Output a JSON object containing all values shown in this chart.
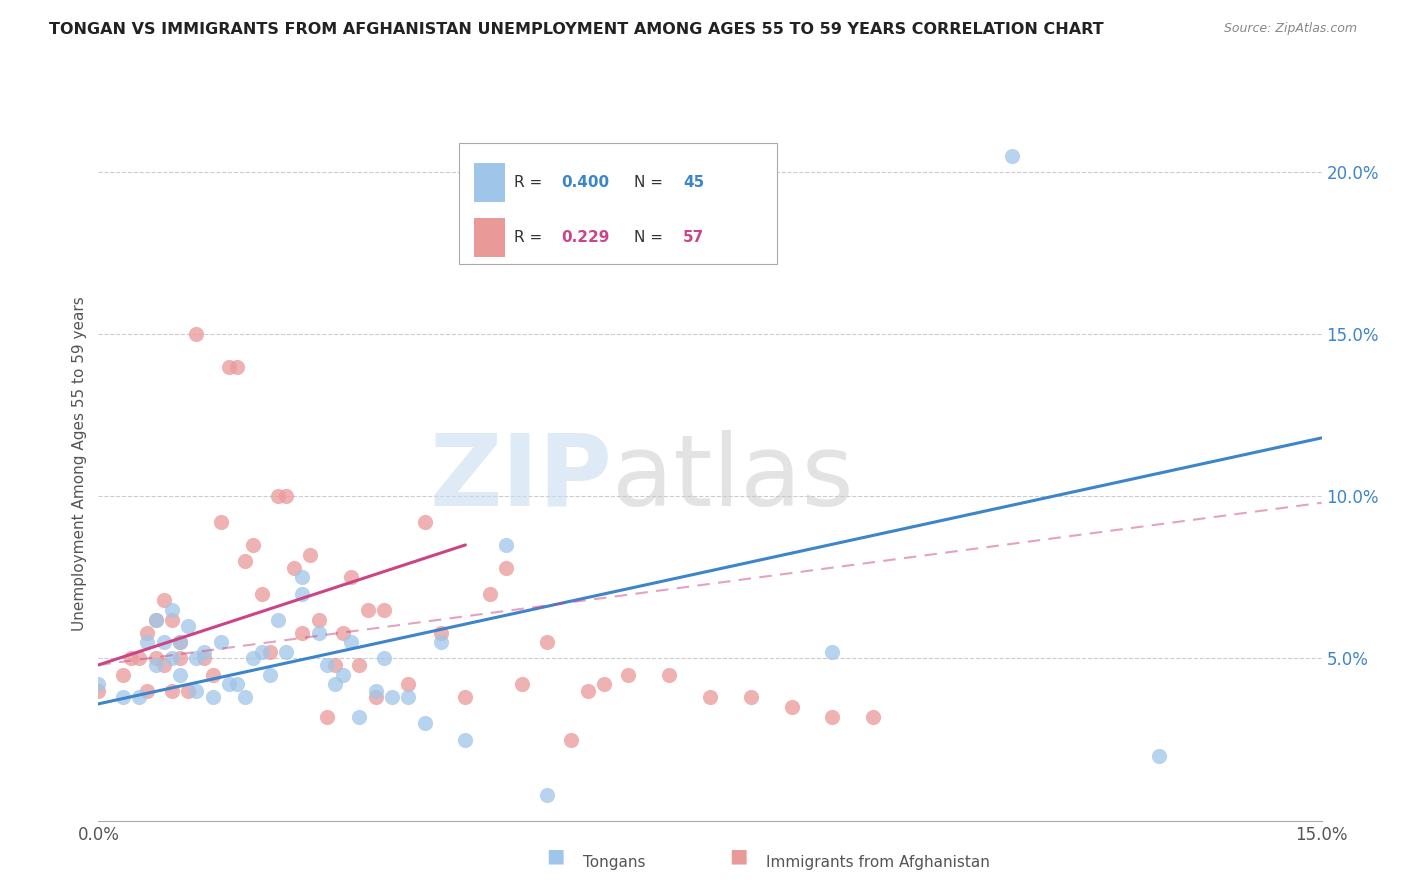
{
  "title": "TONGAN VS IMMIGRANTS FROM AFGHANISTAN UNEMPLOYMENT AMONG AGES 55 TO 59 YEARS CORRELATION CHART",
  "source": "Source: ZipAtlas.com",
  "ylabel": "Unemployment Among Ages 55 to 59 years",
  "xlim": [
    0.0,
    0.15
  ],
  "ylim": [
    0.0,
    0.22
  ],
  "xticks": [
    0.0,
    0.03,
    0.06,
    0.09,
    0.12,
    0.15
  ],
  "yticks_right": [
    0.05,
    0.1,
    0.15,
    0.2
  ],
  "ytick_right_labels": [
    "5.0%",
    "10.0%",
    "15.0%",
    "20.0%"
  ],
  "tongans_x": [
    0.0,
    0.003,
    0.005,
    0.006,
    0.007,
    0.007,
    0.008,
    0.009,
    0.009,
    0.01,
    0.01,
    0.011,
    0.012,
    0.012,
    0.013,
    0.014,
    0.015,
    0.016,
    0.017,
    0.018,
    0.019,
    0.02,
    0.021,
    0.022,
    0.023,
    0.025,
    0.025,
    0.027,
    0.028,
    0.029,
    0.03,
    0.031,
    0.032,
    0.034,
    0.035,
    0.036,
    0.038,
    0.04,
    0.042,
    0.045,
    0.05,
    0.055,
    0.09,
    0.112,
    0.13
  ],
  "tongans_y": [
    0.042,
    0.038,
    0.038,
    0.055,
    0.048,
    0.062,
    0.055,
    0.05,
    0.065,
    0.045,
    0.055,
    0.06,
    0.04,
    0.05,
    0.052,
    0.038,
    0.055,
    0.042,
    0.042,
    0.038,
    0.05,
    0.052,
    0.045,
    0.062,
    0.052,
    0.07,
    0.075,
    0.058,
    0.048,
    0.042,
    0.045,
    0.055,
    0.032,
    0.04,
    0.05,
    0.038,
    0.038,
    0.03,
    0.055,
    0.025,
    0.085,
    0.008,
    0.052,
    0.205,
    0.02
  ],
  "afghanistan_x": [
    0.0,
    0.003,
    0.004,
    0.005,
    0.006,
    0.006,
    0.007,
    0.007,
    0.008,
    0.008,
    0.009,
    0.009,
    0.01,
    0.01,
    0.011,
    0.012,
    0.013,
    0.014,
    0.015,
    0.016,
    0.017,
    0.018,
    0.019,
    0.02,
    0.021,
    0.022,
    0.023,
    0.024,
    0.025,
    0.026,
    0.027,
    0.028,
    0.029,
    0.03,
    0.031,
    0.032,
    0.033,
    0.034,
    0.035,
    0.038,
    0.04,
    0.042,
    0.045,
    0.048,
    0.05,
    0.052,
    0.055,
    0.058,
    0.06,
    0.062,
    0.065,
    0.07,
    0.075,
    0.08,
    0.085,
    0.09,
    0.095
  ],
  "afghanistan_y": [
    0.04,
    0.045,
    0.05,
    0.05,
    0.04,
    0.058,
    0.05,
    0.062,
    0.048,
    0.068,
    0.04,
    0.062,
    0.05,
    0.055,
    0.04,
    0.15,
    0.05,
    0.045,
    0.092,
    0.14,
    0.14,
    0.08,
    0.085,
    0.07,
    0.052,
    0.1,
    0.1,
    0.078,
    0.058,
    0.082,
    0.062,
    0.032,
    0.048,
    0.058,
    0.075,
    0.048,
    0.065,
    0.038,
    0.065,
    0.042,
    0.092,
    0.058,
    0.038,
    0.07,
    0.078,
    0.042,
    0.055,
    0.025,
    0.04,
    0.042,
    0.045,
    0.045,
    0.038,
    0.038,
    0.035,
    0.032,
    0.032
  ],
  "blue_line": {
    "x": [
      0.0,
      0.15
    ],
    "y": [
      0.036,
      0.118
    ]
  },
  "pink_line": {
    "x": [
      0.0,
      0.045
    ],
    "y": [
      0.048,
      0.085
    ]
  },
  "tongans_color": "#9fc5e8",
  "afghanistan_color": "#ea9999",
  "blue_line_color": "#3d85c8",
  "pink_line_color": "#cc4488",
  "watermark_zip": "ZIP",
  "watermark_atlas": "atlas",
  "background_color": "#ffffff",
  "grid_color": "#cccccc",
  "legend_r1_val": "0.400",
  "legend_r1_n": "45",
  "legend_r2_val": "0.229",
  "legend_r2_n": "57",
  "bottom_label1": "Tongans",
  "bottom_label2": "Immigrants from Afghanistan"
}
